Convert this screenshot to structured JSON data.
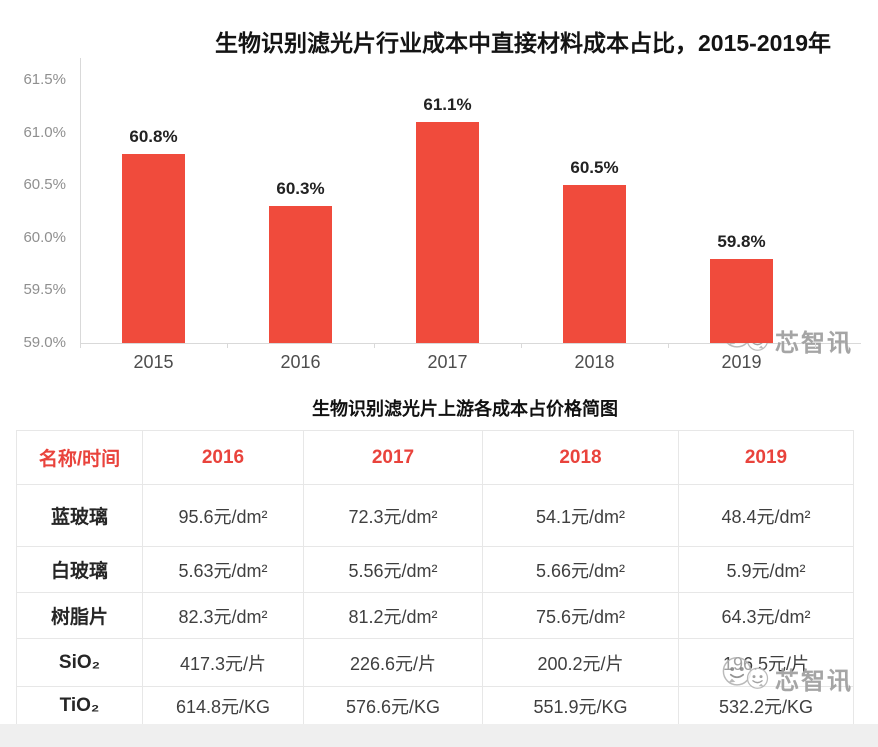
{
  "colors": {
    "bar": "#F04B3C",
    "table_header_text": "#E9433C",
    "axis": "#D9D9D9",
    "border": "#E7E7E7",
    "footer_band": "#EFEFEF",
    "watermark_text": "#9E9E9E"
  },
  "watermark": {
    "text": "芯智讯"
  },
  "chart_data": {
    "type": "bar",
    "title": "生物识别滤光片行业成本中直接材料成本占比，2015-2019年",
    "categories": [
      "2015",
      "2016",
      "2017",
      "2018",
      "2019"
    ],
    "values": [
      60.8,
      60.3,
      61.1,
      60.5,
      59.8
    ],
    "value_labels": [
      "60.8%",
      "60.3%",
      "61.1%",
      "60.5%",
      "59.8%"
    ],
    "xlabel": "",
    "ylabel": "",
    "ylim": [
      59.0,
      61.5
    ],
    "ytick_labels": [
      "61.5%",
      "61.0%",
      "60.5%",
      "60.0%",
      "59.5%",
      "59.0%"
    ],
    "grid": false,
    "legend": false,
    "bar_color": "#F04B3C"
  },
  "table": {
    "title": "生物识别滤光片上游各成本占价格简图",
    "headers": [
      "名称/时间",
      "2016",
      "2017",
      "2018",
      "2019"
    ],
    "rows": [
      {
        "label": "蓝玻璃",
        "values": [
          "95.6元/dm²",
          "72.3元/dm²",
          "54.1元/dm²",
          "48.4元/dm²"
        ]
      },
      {
        "label": "白玻璃",
        "values": [
          "5.63元/dm²",
          "5.56元/dm²",
          "5.66元/dm²",
          "5.9元/dm²"
        ]
      },
      {
        "label": "树脂片",
        "values": [
          "82.3元/dm²",
          "81.2元/dm²",
          "75.6元/dm²",
          "64.3元/dm²"
        ]
      },
      {
        "label": "SiO₂",
        "values": [
          "417.3元/片",
          "226.6元/片",
          "200.2元/片",
          "196.5元/片"
        ]
      },
      {
        "label": "TiO₂",
        "values": [
          "614.8元/KG",
          "576.6元/KG",
          "551.9元/KG",
          "532.2元/KG"
        ]
      }
    ]
  }
}
